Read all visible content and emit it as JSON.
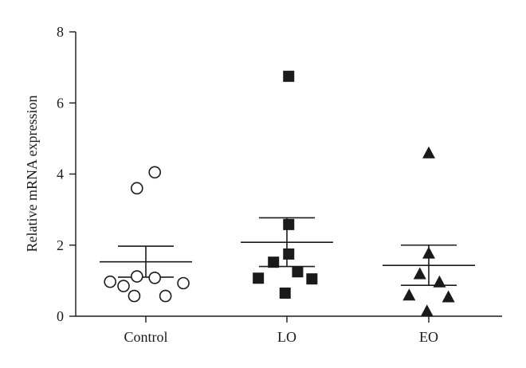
{
  "chart_data": {
    "type": "scatter",
    "title": "",
    "xlabel": "",
    "ylabel": "Relative mRNA expression",
    "ylim": [
      0,
      8
    ],
    "y_ticks": [
      "0",
      "2",
      "4",
      "6",
      "8"
    ],
    "categories": [
      "Control",
      "LO",
      "EO"
    ],
    "grid": false,
    "legend": "none",
    "series": [
      {
        "category": "Control",
        "marker": "open-circle",
        "points": [
          {
            "x": -0.4,
            "y": 0.97
          },
          {
            "x": -0.25,
            "y": 0.85
          },
          {
            "x": -0.13,
            "y": 0.57
          },
          {
            "x": -0.1,
            "y": 1.12
          },
          {
            "x": 0.1,
            "y": 1.08
          },
          {
            "x": 0.22,
            "y": 0.57
          },
          {
            "x": 0.42,
            "y": 0.93
          },
          {
            "x": -0.1,
            "y": 3.6
          },
          {
            "x": 0.1,
            "y": 4.05
          }
        ],
        "mean": 1.53,
        "sem_low": 1.1,
        "sem_high": 1.97
      },
      {
        "category": "LO",
        "marker": "filled-square",
        "points": [
          {
            "x": -0.32,
            "y": 1.07
          },
          {
            "x": -0.15,
            "y": 1.52
          },
          {
            "x": 0.02,
            "y": 1.75
          },
          {
            "x": -0.02,
            "y": 0.65
          },
          {
            "x": 0.12,
            "y": 1.25
          },
          {
            "x": 0.28,
            "y": 1.05
          },
          {
            "x": 0.02,
            "y": 2.58
          },
          {
            "x": 0.02,
            "y": 6.75
          }
        ],
        "mean": 2.08,
        "sem_low": 1.4,
        "sem_high": 2.77
      },
      {
        "category": "EO",
        "marker": "filled-triangle",
        "points": [
          {
            "x": -0.22,
            "y": 0.6
          },
          {
            "x": -0.1,
            "y": 1.2
          },
          {
            "x": 0.0,
            "y": 1.78
          },
          {
            "x": -0.02,
            "y": 0.15
          },
          {
            "x": 0.12,
            "y": 0.97
          },
          {
            "x": 0.22,
            "y": 0.55
          },
          {
            "x": 0.0,
            "y": 4.6
          }
        ],
        "mean": 1.43,
        "sem_low": 0.87,
        "sem_high": 2.0
      }
    ]
  }
}
